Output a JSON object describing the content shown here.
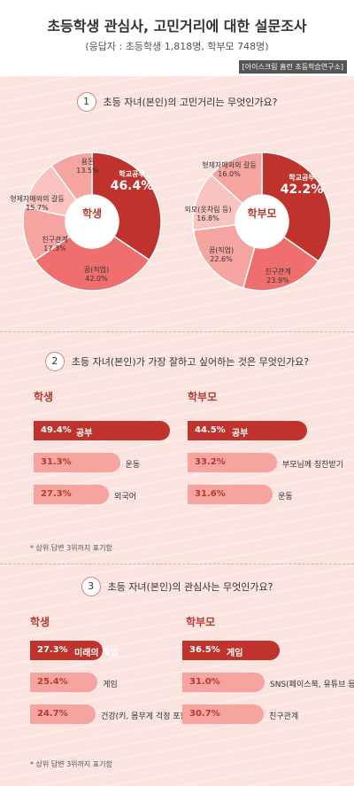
{
  "header": {
    "title": "초등학생 관심사, 고민거리에 대한 설문조사",
    "subtitle": "(응답자 : 초등학생 1,818명, 학부모 748명)",
    "source": "[아이스크림 홈런 초등학습연구소]"
  },
  "q1": {
    "number": "1",
    "question": "초등 자녀(본인)의 고민거리는 무엇인가요?",
    "student_center": "학생",
    "parent_center": "학부모"
  },
  "q2": {
    "number": "2",
    "question": "초등 자녀(본인)가 가장 잘하고 싶어하는 것은 무엇인가요?",
    "student_title": "학생",
    "parent_title": "학부모",
    "note": "* 상위 답변 3위까지 표기함"
  },
  "q3": {
    "number": "3",
    "question": "초등 자녀(본인)의 관심사는 무엇인가요?",
    "student_title": "학생",
    "parent_title": "학부모",
    "note": "* 상위 답변 3위까지 표기함"
  },
  "colors": {
    "dark": "#c0332d",
    "mid": "#ef6f6f",
    "light": "#f6a4a0",
    "lighter": "#f9c3bf"
  },
  "chart_data": [
    {
      "type": "pie",
      "title": "학생",
      "categories": [
        "학교공부",
        "꿈(직업)",
        "친구관계",
        "형제자매와의 갈등",
        "용돈"
      ],
      "values": [
        46.4,
        42.0,
        17.3,
        15.7,
        13.5
      ],
      "value_labels": [
        "46.4%",
        "42.0%",
        "17.3%",
        "15.7%",
        "13.5%"
      ]
    },
    {
      "type": "pie",
      "title": "학부모",
      "categories": [
        "학교공부",
        "친구관계",
        "꿈(직업)",
        "외모(옷차림 등)",
        "형제자매와의 갈등"
      ],
      "values": [
        42.2,
        23.9,
        22.6,
        16.8,
        16.0
      ],
      "value_labels": [
        "42.2%",
        "23.9%",
        "22.6%",
        "16.8%",
        "16.0%"
      ]
    },
    {
      "type": "bar",
      "title": "학생",
      "categories": [
        "공부",
        "운동",
        "외국어"
      ],
      "values": [
        49.4,
        31.3,
        27.3
      ],
      "value_labels": [
        "49.4%",
        "31.3%",
        "27.3%"
      ]
    },
    {
      "type": "bar",
      "title": "학부모",
      "categories": [
        "공부",
        "부모님께 칭찬받기",
        "운동"
      ],
      "values": [
        44.5,
        33.2,
        31.6
      ],
      "value_labels": [
        "44.5%",
        "33.2%",
        "31.6%"
      ]
    },
    {
      "type": "bar",
      "title": "학생",
      "categories": [
        "미래의 직업",
        "게임",
        "건강(키, 몸무게 걱정 포함)"
      ],
      "values": [
        27.3,
        25.4,
        24.7
      ],
      "value_labels": [
        "27.3%",
        "25.4%",
        "24.7%"
      ]
    },
    {
      "type": "bar",
      "title": "학부모",
      "categories": [
        "게임",
        "SNS(페이스북, 유튜브 등)",
        "친구관계"
      ],
      "values": [
        36.5,
        31.0,
        30.7
      ],
      "value_labels": [
        "36.5%",
        "31.0%",
        "30.7%"
      ]
    }
  ]
}
